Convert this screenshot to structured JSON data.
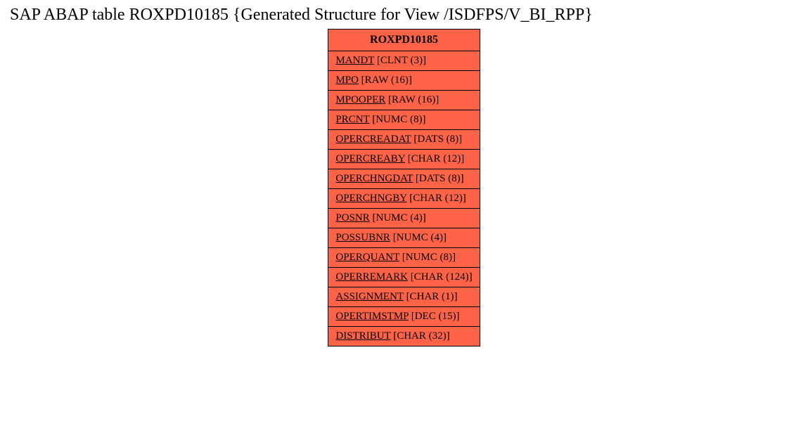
{
  "title": "SAP ABAP table ROXPD10185 {Generated Structure for View /ISDFPS/V_BI_RPP}",
  "table": {
    "header": "ROXPD10185",
    "header_bg": "#ff6347",
    "row_bg": "#ff6347",
    "border_color": "#000000",
    "title_fontsize": 24,
    "header_fontsize": 16,
    "cell_fontsize": 15,
    "fields": [
      {
        "name": "MANDT",
        "type": "[CLNT (3)]"
      },
      {
        "name": "MPO",
        "type": "[RAW (16)]"
      },
      {
        "name": "MPOOPER",
        "type": "[RAW (16)]"
      },
      {
        "name": "PRCNT",
        "type": "[NUMC (8)]"
      },
      {
        "name": "OPERCREADAT",
        "type": "[DATS (8)]"
      },
      {
        "name": "OPERCREABY",
        "type": "[CHAR (12)]"
      },
      {
        "name": "OPERCHNGDAT",
        "type": "[DATS (8)]"
      },
      {
        "name": "OPERCHNGBY",
        "type": "[CHAR (12)]"
      },
      {
        "name": "POSNR",
        "type": "[NUMC (4)]"
      },
      {
        "name": "POSSUBNR",
        "type": "[NUMC (4)]"
      },
      {
        "name": "OPERQUANT",
        "type": "[NUMC (8)]"
      },
      {
        "name": "OPERREMARK",
        "type": "[CHAR (124)]"
      },
      {
        "name": "ASSIGNMENT",
        "type": "[CHAR (1)]"
      },
      {
        "name": "OPERTIMSTMP",
        "type": "[DEC (15)]"
      },
      {
        "name": "DISTRIBUT",
        "type": "[CHAR (32)]"
      }
    ]
  }
}
